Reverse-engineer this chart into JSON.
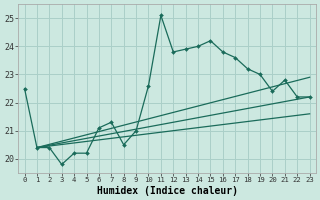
{
  "title": "",
  "xlabel": "Humidex (Indice chaleur)",
  "bg_color": "#cce8e0",
  "grid_color": "#aacfc8",
  "line_color": "#1a6b5a",
  "spine_color": "#aaaaaa",
  "xlim": [
    -0.5,
    23.5
  ],
  "ylim": [
    19.5,
    25.5
  ],
  "yticks": [
    20,
    21,
    22,
    23,
    24,
    25
  ],
  "xticks": [
    0,
    1,
    2,
    3,
    4,
    5,
    6,
    7,
    8,
    9,
    10,
    11,
    12,
    13,
    14,
    15,
    16,
    17,
    18,
    19,
    20,
    21,
    22,
    23
  ],
  "xtick_labels": [
    "0",
    "1",
    "2",
    "3",
    "4",
    "5",
    "6",
    "7",
    "8",
    "9",
    "10",
    "11",
    "12",
    "13",
    "14",
    "15",
    "16",
    "17",
    "18",
    "19",
    "20",
    "21",
    "22",
    "23"
  ],
  "line1_x": [
    0,
    1,
    2,
    3,
    4,
    5,
    6,
    7,
    8,
    9,
    10,
    11,
    12,
    13,
    14,
    15,
    16,
    17,
    18,
    19,
    20,
    21,
    22,
    23
  ],
  "line1_y": [
    22.5,
    20.4,
    20.4,
    19.8,
    20.2,
    20.2,
    21.1,
    21.3,
    20.5,
    21.0,
    22.6,
    25.1,
    23.8,
    23.9,
    24.0,
    24.2,
    23.8,
    23.6,
    23.2,
    23.0,
    22.4,
    22.8,
    22.2,
    22.2
  ],
  "line2_x": [
    1,
    23
  ],
  "line2_y": [
    20.4,
    22.9
  ],
  "line3_x": [
    1,
    23
  ],
  "line3_y": [
    20.4,
    22.2
  ],
  "line4_x": [
    1,
    23
  ],
  "line4_y": [
    20.4,
    21.6
  ]
}
